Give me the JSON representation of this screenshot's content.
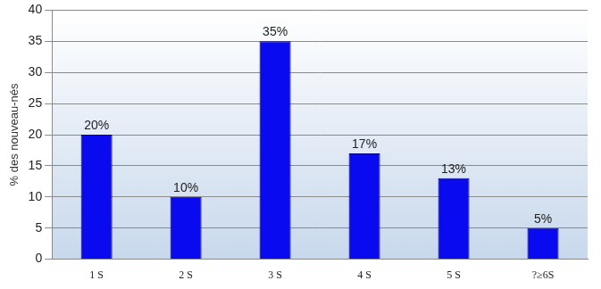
{
  "chart_data": {
    "type": "bar",
    "y_label": "% des nouveau-nés",
    "categories": [
      "1 S",
      "2 S",
      "3 S",
      "4 S",
      "5 S",
      "?≥6S"
    ],
    "values": [
      20,
      10,
      35,
      17,
      13,
      5
    ],
    "value_labels": [
      "20%",
      "10%",
      "35%",
      "17%",
      "13%",
      "5%"
    ],
    "data_labels": true,
    "color": "#0a0af0",
    "ylim": [
      0,
      40
    ],
    "yticks": [
      0,
      5,
      10,
      15,
      20,
      25,
      30,
      35,
      40
    ],
    "grid": true
  }
}
